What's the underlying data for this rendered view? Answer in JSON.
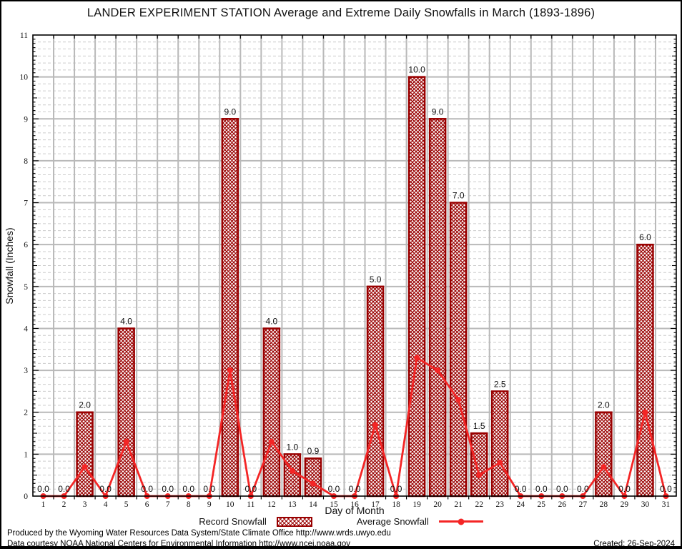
{
  "title": "LANDER EXPERIMENT STATION Average and Extreme Daily Snowfalls in March (1893-1896)",
  "legend": {
    "record_label": "Record Snowfall",
    "average_label": "Average Snowfall"
  },
  "footer": {
    "line1": "Produced by the Wyoming Water Resources Data System/State Climate Office http://www.wrds.uwyo.edu",
    "line2": "Data courtesy NOAA National Centers for Environmental Information http://www.ncei.noaa.gov",
    "created": "Created: 26-Sep-2024"
  },
  "colors": {
    "bar_edge": "#990000",
    "bar_hatch": "#990000",
    "bar_background": "#ffffff",
    "avg_line": "#f42525",
    "grid_major": "#b9b9b9",
    "grid_minor": "#cccccc",
    "axis": "#000000",
    "text": "#111111"
  },
  "chart_data": {
    "type": "bar",
    "title": "LANDER EXPERIMENT STATION Average and Extreme Daily Snowfalls in March (1893-1896)",
    "xlabel": "Day of Month",
    "ylabel": "Snowfall (Inches)",
    "ylim": [
      0,
      11
    ],
    "y_ticks": [
      0,
      1,
      2,
      3,
      4,
      5,
      6,
      7,
      8,
      9,
      10,
      11
    ],
    "grid": "major gray solid + minor dotted horizontal",
    "legend_position": "bottom-center",
    "x": [
      1,
      2,
      3,
      4,
      5,
      6,
      7,
      8,
      9,
      10,
      11,
      12,
      13,
      14,
      15,
      16,
      17,
      18,
      19,
      20,
      21,
      22,
      23,
      24,
      25,
      26,
      27,
      28,
      29,
      30,
      31
    ],
    "series": [
      {
        "name": "Record Snowfall",
        "type": "bar",
        "values": [
          0.0,
          0.0,
          2.0,
          0.0,
          4.0,
          0.0,
          0.0,
          0.0,
          0.0,
          9.0,
          0.0,
          4.0,
          1.0,
          0.9,
          0.0,
          0.0,
          5.0,
          0.0,
          10.0,
          9.0,
          7.0,
          1.5,
          2.5,
          0.0,
          0.0,
          0.0,
          0.0,
          2.0,
          0.0,
          6.0,
          0.0
        ],
        "value_labels": [
          "0.0",
          "0.0",
          "2.0",
          "0.0",
          "4.0",
          "0.0",
          "0.0",
          "0.0",
          "0.0",
          "9.0",
          "0.0",
          "4.0",
          "1.0",
          "0.9",
          "0.0",
          "0.0",
          "5.0",
          "0.0",
          "10.0",
          "9.0",
          "7.0",
          "1.5",
          "2.5",
          "0.0",
          "0.0",
          "0.0",
          "0.0",
          "2.0",
          "0.0",
          "6.0",
          "0.0"
        ]
      },
      {
        "name": "Average Snowfall",
        "type": "line",
        "values": [
          0.0,
          0.0,
          0.7,
          0.0,
          1.3,
          0.0,
          0.0,
          0.0,
          0.0,
          3.0,
          0.0,
          1.3,
          0.6,
          0.3,
          0.0,
          0.0,
          1.7,
          0.0,
          3.3,
          3.0,
          2.3,
          0.5,
          0.8,
          0.0,
          0.0,
          0.0,
          0.0,
          0.7,
          0.0,
          2.0,
          0.0
        ]
      }
    ]
  }
}
